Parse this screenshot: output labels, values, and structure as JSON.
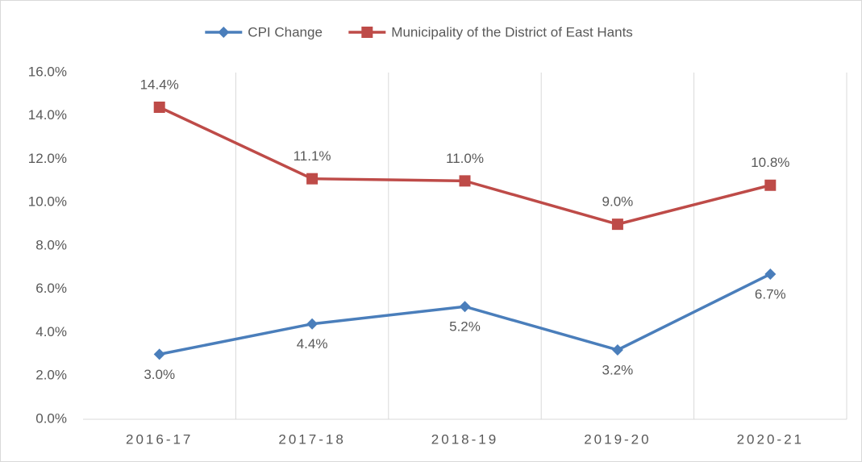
{
  "chart_data": {
    "type": "line",
    "categories": [
      "2016-17",
      "2017-18",
      "2018-19",
      "2019-20",
      "2020-21"
    ],
    "series": [
      {
        "name": "CPI Change",
        "color": "#4a7ebb",
        "marker": "diamond",
        "values": [
          3.0,
          4.4,
          5.2,
          3.2,
          6.7
        ],
        "value_labels": [
          "3.0%",
          "4.4%",
          "5.2%",
          "3.2%",
          "6.7%"
        ]
      },
      {
        "name": "Municipality of the District of East Hants",
        "color": "#be4b48",
        "marker": "square",
        "values": [
          14.4,
          11.1,
          11.0,
          9.0,
          10.8
        ],
        "value_labels": [
          "14.4%",
          "11.1%",
          "11.0%",
          "9.0%",
          "10.8%"
        ]
      }
    ],
    "ylim": [
      0,
      16
    ],
    "yticks": [
      {
        "value": 0,
        "label": "0.0%"
      },
      {
        "value": 2,
        "label": "2.0%"
      },
      {
        "value": 4,
        "label": "4.0%"
      },
      {
        "value": 6,
        "label": "6.0%"
      },
      {
        "value": 8,
        "label": "8.0%"
      },
      {
        "value": 10,
        "label": "10.0%"
      },
      {
        "value": 12,
        "label": "12.0%"
      },
      {
        "value": 14,
        "label": "14.0%"
      },
      {
        "value": 16,
        "label": "16.0%"
      }
    ],
    "legend": "top"
  }
}
